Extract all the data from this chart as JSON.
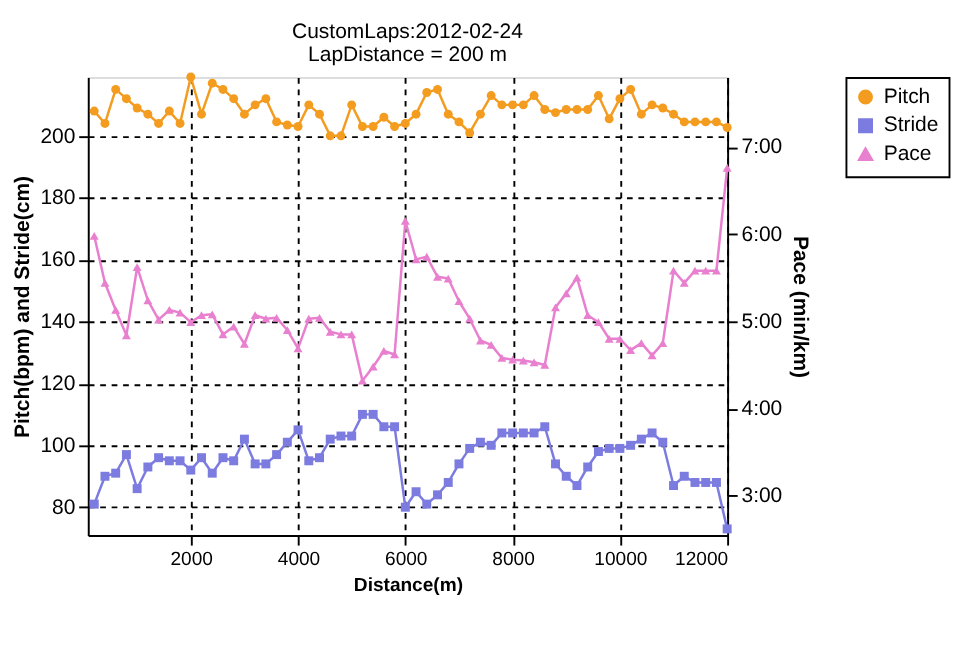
{
  "chart_data": {
    "type": "line",
    "title": "CustomLaps:2012-02-24",
    "subtitle": "LapDistance = 200 m",
    "xlabel": "Distance(m)",
    "ylabel": "Pitch(bpm) and Stride(cm)",
    "y2label": "Pace (min/km)",
    "x": [
      200,
      400,
      600,
      800,
      1000,
      1200,
      1400,
      1600,
      1800,
      2000,
      2200,
      2400,
      2600,
      2800,
      3000,
      3200,
      3400,
      3600,
      3800,
      4000,
      4200,
      4400,
      4600,
      4800,
      5000,
      5200,
      5400,
      5600,
      5800,
      6000,
      6200,
      6400,
      6600,
      6800,
      7000,
      7200,
      7400,
      7600,
      7800,
      8000,
      8200,
      8400,
      8600,
      8800,
      9000,
      9200,
      9400,
      9600,
      9800,
      10000,
      10200,
      10400,
      10600,
      10800,
      11000,
      11200,
      11400,
      11600,
      11800,
      12000
    ],
    "series": [
      {
        "name": "Pitch",
        "color": "#f39c1f",
        "marker": "circle",
        "values": [
          208,
          204,
          215,
          212,
          209,
          207,
          204,
          208,
          204,
          219,
          207,
          217,
          215,
          212,
          207,
          210,
          212,
          204.5,
          203.5,
          203,
          210,
          207,
          200,
          200,
          210,
          203,
          203,
          206,
          203,
          204,
          207,
          214,
          215,
          207,
          204.5,
          201,
          207,
          213,
          210,
          210,
          210,
          213,
          208.5,
          207.5,
          208.5,
          208.5,
          208.5,
          213,
          205.5,
          212,
          215,
          207,
          210,
          209,
          207,
          204.5,
          204.5,
          204.5,
          204.5,
          202.7
        ]
      },
      {
        "name": "Stride",
        "color": "#7b7be0",
        "marker": "square",
        "values": [
          81,
          90,
          91,
          97,
          86,
          93,
          96,
          95,
          95,
          92,
          96,
          91,
          96,
          95,
          102,
          94,
          94,
          97,
          101,
          105,
          95,
          96,
          102,
          103,
          103,
          110,
          110,
          106,
          106,
          80,
          85,
          81,
          84,
          88,
          94,
          99,
          101,
          100,
          104,
          104,
          104,
          104,
          106,
          94,
          90,
          87,
          93,
          98,
          99,
          99,
          100,
          102,
          104,
          101,
          87,
          90,
          88,
          88,
          88,
          73
        ]
      },
      {
        "name": "Pace",
        "color": "#e87fcf",
        "marker": "triangle",
        "axis": "y2",
        "values": [
          5.98,
          5.44,
          5.13,
          4.84,
          5.62,
          5.24,
          5.02,
          5.13,
          5.1,
          4.99,
          5.07,
          5.08,
          4.85,
          4.94,
          4.74,
          5.07,
          5.03,
          5.04,
          4.9,
          4.69,
          5.03,
          5.04,
          4.88,
          4.85,
          4.85,
          4.32,
          4.48,
          4.66,
          4.62,
          6.15,
          5.71,
          5.74,
          5.51,
          5.49,
          5.23,
          5.03,
          4.78,
          4.73,
          4.58,
          4.56,
          4.55,
          4.53,
          4.5,
          5.16,
          5.32,
          5.5,
          5.07,
          4.99,
          4.8,
          4.8,
          4.67,
          4.75,
          4.61,
          4.75,
          5.58,
          5.44,
          5.58,
          5.58,
          5.58,
          6.76
        ]
      }
    ],
    "xlim": [
      80,
      12000
    ],
    "xticks": [
      2000,
      4000,
      6000,
      8000,
      10000,
      12000
    ],
    "ylim": [
      71,
      219
    ],
    "yticks": [
      80,
      100,
      120,
      140,
      160,
      180,
      200
    ],
    "y2lim": [
      2.55,
      7.8
    ],
    "y2ticks": [
      {
        "value": 3,
        "label": "3:00"
      },
      {
        "value": 4,
        "label": "4:00"
      },
      {
        "value": 5,
        "label": "5:00"
      },
      {
        "value": 6,
        "label": "6:00"
      },
      {
        "value": 7,
        "label": "7:00"
      }
    ],
    "grid": true,
    "line_style": "solid",
    "legend": "top right"
  }
}
